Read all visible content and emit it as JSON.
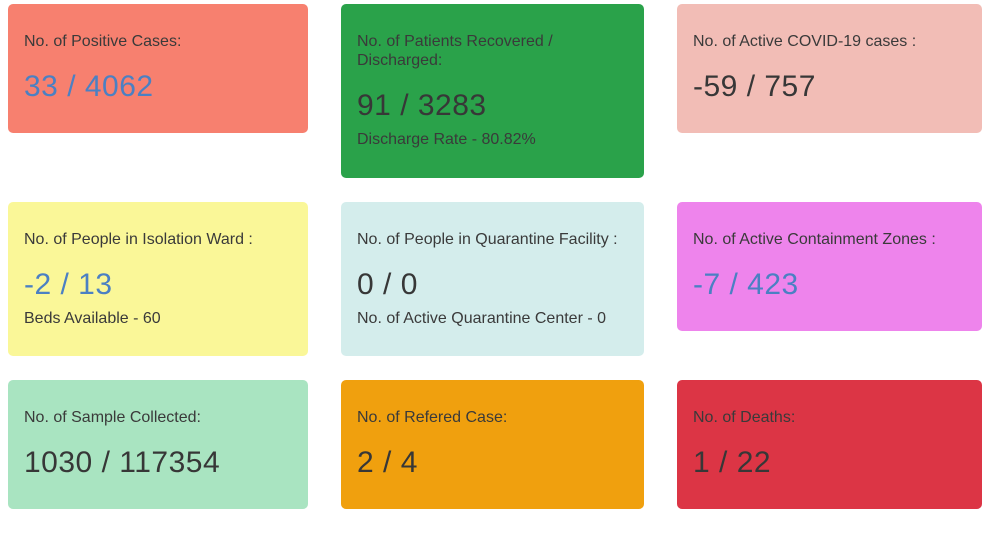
{
  "page": {
    "background": "#ffffff",
    "title_text_color": "#3a3a3a",
    "value_blue": "#4b80c3",
    "value_dark": "#373737"
  },
  "cards": [
    {
      "name": "positive-cases",
      "title": "No. of Positive Cases:",
      "value": "33 / 4062",
      "bg": "#f7806f",
      "value_color": "#4b80c3"
    },
    {
      "name": "patients-recovered-discharged",
      "title": "No. of Patients Recovered / Discharged:",
      "value": "91 / 3283",
      "subtitle": "Discharge Rate - 80.82%",
      "bg": "#2aa24a",
      "value_color": "#373737"
    },
    {
      "name": "active-covid-cases",
      "title": "No. of Active COVID-19 cases :",
      "value": "-59 / 757",
      "bg": "#f2bdb6",
      "value_color": "#373737"
    },
    {
      "name": "people-in-isolation-ward",
      "title": "No. of People in Isolation Ward :",
      "value": "-2 / 13",
      "subtitle": "Beds Available - 60",
      "bg": "#faf798",
      "value_color": "#4b80c3"
    },
    {
      "name": "people-in-quarantine-facility",
      "title": "No. of People in Quarantine Facility :",
      "value": "0 / 0",
      "subtitle": "No. of Active Quarantine Center - 0",
      "bg": "#d4edec",
      "value_color": "#373737"
    },
    {
      "name": "active-containment-zones",
      "title": "No. of Active Containment Zones :",
      "value": "-7 / 423",
      "bg": "#ee84ec",
      "value_color": "#4b80c3"
    },
    {
      "name": "sample-collected",
      "title": "No. of Sample Collected:",
      "value": "1030 / 117354",
      "bg": "#a9e4c1",
      "value_color": "#373737"
    },
    {
      "name": "refered-case",
      "title": "No. of Refered Case:",
      "value": "2 / 4",
      "bg": "#f0a00e",
      "value_color": "#373737"
    },
    {
      "name": "deaths",
      "title": "No. of Deaths:",
      "value": "1 / 22",
      "bg": "#dc3545",
      "value_color": "#373737"
    }
  ]
}
